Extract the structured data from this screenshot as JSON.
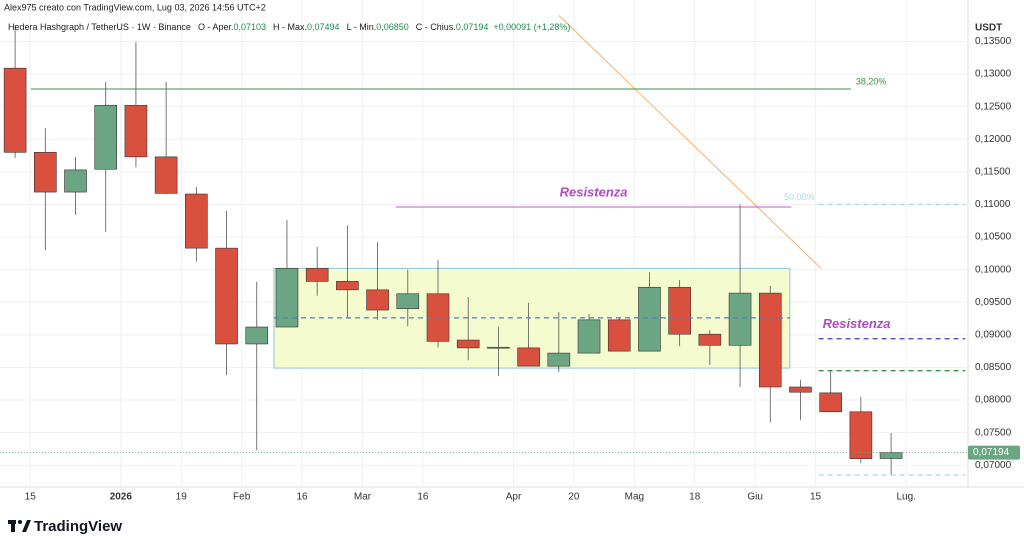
{
  "header": {
    "watermark": "Alex975 creato con TradingView.com, Lug 03, 2026 14:56 UTC+2",
    "symbol": "Hedera Hashgraph / TetherUS · 1W · Binance",
    "items": [
      {
        "label": "O - Aper.",
        "value": "0,07103"
      },
      {
        "label": "H - Max.",
        "value": "0,07494"
      },
      {
        "label": "L - Min.",
        "value": "0,06850"
      },
      {
        "label": "C - Chius.",
        "value": "0,07194"
      }
    ],
    "change": "+0,00091 (+1,28%)"
  },
  "footer": {
    "brand": "TradingView"
  },
  "chart_data": {
    "type": "candlestick",
    "currency": "USDT",
    "open": [
      0.1309,
      0.118,
      0.1119,
      0.1154,
      0.1252,
      0.1173,
      0.1116,
      0.1033,
      0.0886,
      0.0912,
      0.1002,
      0.0982,
      0.0969,
      0.094,
      0.0963,
      0.0892,
      0.0881,
      0.088,
      0.0852,
      0.0872,
      0.0923,
      0.0875,
      0.0973,
      0.0901,
      0.0884,
      0.0964,
      0.082,
      0.0811,
      0.0782,
      0.07103
    ],
    "high": [
      0.1375,
      0.1217,
      0.1173,
      0.1288,
      0.1349,
      0.1288,
      0.1127,
      0.109,
      0.0981,
      0.1076,
      0.1035,
      0.1068,
      0.1042,
      0.1,
      0.1015,
      0.0958,
      0.0912,
      0.0949,
      0.0935,
      0.0932,
      0.0926,
      0.0996,
      0.0984,
      0.0907,
      0.11,
      0.0975,
      0.0831,
      0.0845,
      0.0805,
      0.07494
    ],
    "low": [
      0.1171,
      0.103,
      0.1084,
      0.1058,
      0.1157,
      0.1116,
      0.1012,
      0.0838,
      0.0723,
      0.0912,
      0.096,
      0.0926,
      0.0923,
      0.0913,
      0.0881,
      0.0861,
      0.0837,
      0.0852,
      0.0843,
      0.0872,
      0.0875,
      0.0875,
      0.0883,
      0.0854,
      0.082,
      0.0766,
      0.0769,
      0.0782,
      0.0703,
      0.0685
    ],
    "close": [
      0.118,
      0.1119,
      0.1153,
      0.1252,
      0.1173,
      0.1117,
      0.1033,
      0.0886,
      0.0912,
      0.1002,
      0.0982,
      0.0969,
      0.0938,
      0.0963,
      0.089,
      0.088,
      0.0881,
      0.0852,
      0.0872,
      0.0923,
      0.0875,
      0.0973,
      0.0901,
      0.0884,
      0.0964,
      0.082,
      0.0812,
      0.0782,
      0.071,
      0.07194
    ],
    "last_label": "0,07194",
    "up_color": "#6ba583",
    "down_color": "#d9503f",
    "xlim": [
      0,
      33.9
    ],
    "xticks": [
      {
        "value": 1,
        "label": "15"
      },
      {
        "value": 4,
        "label": "2026"
      },
      {
        "value": 6,
        "label": "19"
      },
      {
        "value": 8,
        "label": "Feb"
      },
      {
        "value": 10,
        "label": "16"
      },
      {
        "value": 12,
        "label": "Mar"
      },
      {
        "value": 14,
        "label": "16"
      },
      {
        "value": 17,
        "label": "Apr"
      },
      {
        "value": 19,
        "label": "20"
      },
      {
        "value": 21,
        "label": "Mag"
      },
      {
        "value": 23,
        "label": "18"
      },
      {
        "value": 25,
        "label": "Giu"
      },
      {
        "value": 27,
        "label": "15"
      },
      {
        "value": 30,
        "label": "Lug."
      }
    ],
    "ylim": [
      0.06666,
      0.1386
    ],
    "yticks": [
      {
        "value": 0.07,
        "label": "0,07000"
      },
      {
        "value": 0.075,
        "label": "0,07500"
      },
      {
        "value": 0.08,
        "label": "0,08000"
      },
      {
        "value": 0.085,
        "label": "0,08500"
      },
      {
        "value": 0.09,
        "label": "0,09000"
      },
      {
        "value": 0.095,
        "label": "0,09500"
      },
      {
        "value": 0.1,
        "label": "0,10000"
      },
      {
        "value": 0.105,
        "label": "0,10500"
      },
      {
        "value": 0.11,
        "label": "0,11000"
      },
      {
        "value": 0.115,
        "label": "0,11500"
      },
      {
        "value": 0.12,
        "label": "0,12000"
      },
      {
        "value": 0.125,
        "label": "0,12500"
      },
      {
        "value": 0.13,
        "label": "0,13000"
      },
      {
        "value": 0.135,
        "label": "0,13500"
      }
    ],
    "grid": true,
    "box": {
      "y": [
        0.0849,
        0.1002
      ],
      "x": [
        9.07,
        26.15
      ],
      "fill": "#f3fbcf",
      "stroke": "#8fc3e0"
    },
    "trend": {
      "x": [
        18.5,
        27.18
      ],
      "y": [
        0.139,
        0.1002
      ],
      "color": "#f7b26a"
    },
    "lines": [
      {
        "y": 0.1277,
        "x": [
          1.02,
          28.17
        ],
        "color": "#3d8f45",
        "dash": false,
        "label": "38,20%",
        "label_at": "end"
      },
      {
        "y": 0.1096,
        "x": [
          13.1,
          26.2
        ],
        "color": "#c058c8",
        "dash": false,
        "label": "Resistenza",
        "label_at": "middle",
        "label_color": "#b04cc0"
      },
      {
        "y": 0.11,
        "x": [
          27.1,
          31.95
        ],
        "color": "#aad4ec",
        "dash": true,
        "label": "50,00%",
        "label_at": "start"
      },
      {
        "y": 0.0926,
        "x": [
          9.07,
          26.15
        ],
        "color": "#4a80c8",
        "dash": true
      },
      {
        "y": 0.0894,
        "x": [
          27.1,
          31.95
        ],
        "color": "#4a3aa8",
        "dash": true,
        "label": "Resistenza",
        "label_at": "after",
        "label_color": "#b04cc0"
      },
      {
        "y": 0.0845,
        "x": [
          27.1,
          31.95
        ],
        "color": "#3d8f45",
        "dash": true
      },
      {
        "y": 0.0685,
        "x": [
          27.1,
          31.95
        ],
        "color": "#aad4ec",
        "dash": true
      }
    ]
  }
}
